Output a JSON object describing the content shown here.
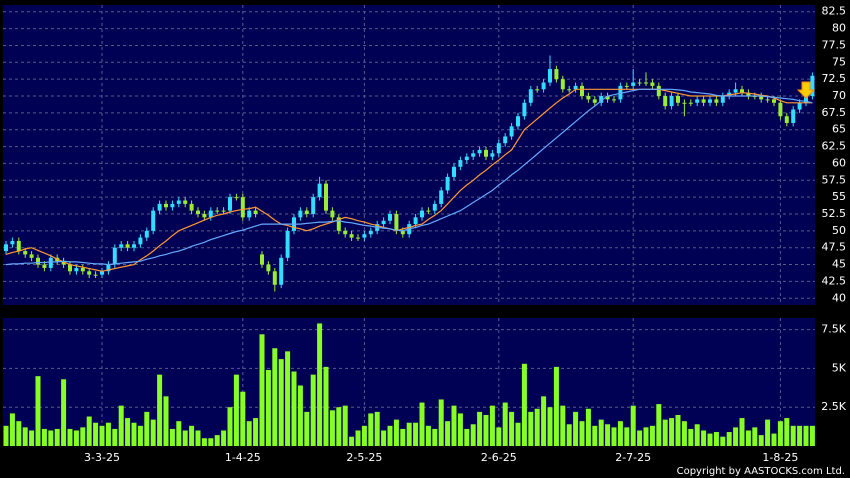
{
  "chart_data": {
    "type": "candlestick",
    "categories": [
      null,
      null,
      null,
      null,
      null,
      null,
      null,
      null,
      null,
      null,
      null,
      null,
      null,
      null,
      null,
      "3-3-25",
      null,
      null,
      null,
      null,
      null,
      null,
      null,
      null,
      null,
      null,
      null,
      null,
      null,
      null,
      null,
      null,
      null,
      null,
      null,
      null,
      null,
      "1-4-25",
      null,
      null,
      null,
      null,
      null,
      null,
      null,
      null,
      null,
      null,
      null,
      null,
      null,
      null,
      null,
      null,
      null,
      null,
      "2-5-25",
      null,
      null,
      null,
      null,
      null,
      null,
      null,
      null,
      null,
      null,
      null,
      null,
      null,
      null,
      null,
      null,
      null,
      null,
      null,
      null,
      "2-6-25",
      null,
      null,
      null,
      null,
      null,
      null,
      null,
      null,
      null,
      null,
      null,
      null,
      null,
      null,
      null,
      null,
      null,
      null,
      null,
      null,
      "2-7-25",
      null,
      null,
      null,
      null,
      null,
      null,
      null,
      null,
      null,
      null,
      null,
      null,
      null,
      null,
      null,
      null,
      null,
      null,
      null,
      null,
      null,
      null,
      "1-8-25",
      null,
      null,
      null,
      null,
      null
    ],
    "open": [
      47,
      48,
      48.5,
      47,
      46.5,
      46,
      45,
      44.5,
      46,
      45.5,
      45,
      44,
      44.5,
      44,
      43.5,
      43.5,
      44,
      45,
      47.5,
      48,
      47.5,
      48,
      49,
      50,
      53,
      54,
      53.5,
      54,
      54.5,
      54,
      53,
      52.5,
      52,
      53,
      53,
      53,
      55,
      55,
      52,
      53,
      46.5,
      45,
      44,
      42,
      46,
      50,
      52,
      53,
      52.5,
      55,
      57,
      53,
      52,
      50,
      49.5,
      49,
      49,
      49.5,
      50,
      51,
      51.5,
      52.5,
      50,
      49.5,
      51,
      52,
      53,
      53,
      54,
      56,
      58,
      59.5,
      60.5,
      61,
      61.5,
      62,
      61,
      61.5,
      63,
      64,
      65.5,
      67,
      69,
      71,
      71,
      72,
      74,
      72.5,
      71,
      71,
      71.5,
      70,
      69.5,
      69,
      70,
      69.5,
      69.5,
      71.5,
      71.5,
      72,
      72,
      72,
      71.5,
      70,
      68.5,
      70,
      69,
      69,
      69,
      69.5,
      69,
      69.5,
      69,
      70,
      70.5,
      71,
      70.5,
      70,
      70,
      69.5,
      69.5,
      69,
      67,
      66,
      68,
      69,
      70
    ],
    "high": [
      48.5,
      49,
      49,
      47.5,
      47,
      46.5,
      45.5,
      46.5,
      46.5,
      46,
      45.5,
      45,
      45,
      44.5,
      44,
      44.5,
      45.5,
      48,
      48.5,
      48.5,
      48.5,
      49.5,
      50.5,
      53.5,
      54.5,
      54.5,
      54.5,
      55,
      55,
      54.5,
      53.5,
      53,
      53.5,
      53.5,
      53.5,
      55.5,
      55.5,
      55.5,
      53.5,
      53.5,
      47,
      45.5,
      44.5,
      46.5,
      50.5,
      52.5,
      53.5,
      53.5,
      55.5,
      58,
      57.5,
      53.5,
      52.5,
      50.5,
      50,
      49.5,
      50,
      50.5,
      51.5,
      52,
      53,
      53,
      50.5,
      51.5,
      52.5,
      53.5,
      53.5,
      54.5,
      56.5,
      58.5,
      60,
      61,
      61.5,
      62,
      62.5,
      62.5,
      62,
      63.5,
      64.5,
      66,
      67.5,
      69.5,
      71.5,
      71.5,
      72.5,
      76,
      74.5,
      73,
      71.5,
      72,
      72,
      70.5,
      70,
      70.5,
      70.5,
      70,
      72,
      72,
      74,
      72.5,
      73.5,
      72.5,
      72,
      70.5,
      70.5,
      70.5,
      69.5,
      69.5,
      70,
      70,
      70,
      70,
      70.5,
      71,
      72,
      71.5,
      71,
      70.5,
      70.5,
      70,
      70,
      69.5,
      67.5,
      68.5,
      69.5,
      70.5,
      73.5
    ],
    "low": [
      46.5,
      47.5,
      46.5,
      46,
      45.5,
      44.5,
      44,
      44,
      45,
      44.5,
      43.5,
      43.5,
      43.5,
      43,
      43,
      43,
      43.5,
      44.5,
      47,
      47,
      47,
      47.5,
      48.5,
      49.5,
      52.5,
      53,
      53,
      53.5,
      53.5,
      52.5,
      52,
      51.5,
      51.5,
      52.5,
      52.5,
      52.5,
      54.5,
      51.5,
      51.5,
      52,
      44.5,
      43.5,
      41,
      41.5,
      45.5,
      49.5,
      51.5,
      52,
      52,
      54.5,
      52.5,
      51.5,
      49.5,
      49,
      48.5,
      48.5,
      48.5,
      49,
      49.5,
      50.5,
      51,
      49.5,
      49,
      49,
      50.5,
      51.5,
      52.5,
      52.5,
      53.5,
      55.5,
      57.5,
      59,
      60,
      60.5,
      61,
      60.5,
      60.5,
      61,
      62.5,
      63.5,
      65,
      66.5,
      68.5,
      70.5,
      70.5,
      71.5,
      72,
      70.5,
      70.5,
      70.5,
      69.5,
      69,
      68.5,
      68.5,
      69,
      69,
      69,
      71,
      71,
      71.5,
      71.5,
      71,
      69.5,
      68,
      68,
      68.5,
      67,
      68.5,
      68.5,
      68.5,
      68.5,
      68.5,
      68.5,
      69.5,
      70,
      70,
      69.5,
      69.5,
      69,
      69,
      68.5,
      66.5,
      65.5,
      65.5,
      67.5,
      68.5,
      69.5
    ],
    "close": [
      48,
      48.5,
      47,
      46.5,
      46,
      45,
      44.5,
      46,
      45.5,
      45,
      44,
      44.5,
      44,
      43.5,
      43.5,
      44,
      45,
      47.5,
      48,
      47.5,
      48,
      49,
      50,
      53,
      54,
      53.5,
      54,
      54.5,
      54,
      53,
      52.5,
      52,
      53,
      53,
      53,
      55,
      55,
      52,
      53,
      52.5,
      45,
      44,
      42,
      46,
      50,
      52,
      53,
      52.5,
      55,
      57,
      53,
      52,
      50,
      49.5,
      49,
      49,
      49.5,
      50,
      51,
      51.5,
      52.5,
      50,
      49.5,
      51,
      52,
      53,
      53,
      54,
      56,
      58,
      59.5,
      60.5,
      61,
      61.5,
      62,
      61,
      61.5,
      63,
      64,
      65.5,
      67,
      69,
      71,
      71,
      72,
      74,
      72.5,
      71,
      71,
      71.5,
      70,
      69.5,
      69,
      70,
      69.5,
      69.5,
      71.5,
      71.5,
      72,
      72,
      72,
      71.5,
      70,
      68.5,
      70,
      69,
      69,
      69,
      69.5,
      69,
      69.5,
      69,
      70,
      70.5,
      71,
      70.5,
      70,
      70,
      69.5,
      69.5,
      69,
      67,
      66,
      68,
      69,
      70,
      73
    ],
    "up_color": "#33ddff",
    "down_color": "#99ee33",
    "lines": [
      {
        "color": "#ff9933",
        "values": [
          46.5,
          46.8,
          47,
          47.3,
          47.5,
          47.1,
          46.7,
          46.3,
          45.8,
          45.4,
          45,
          44.8,
          44.6,
          44.4,
          44.2,
          44,
          44.2,
          44.4,
          44.6,
          44.8,
          45,
          45.7,
          46.3,
          47,
          47.8,
          48.5,
          49.3,
          50,
          50.4,
          50.8,
          51.2,
          51.6,
          52,
          52.3,
          52.5,
          52.8,
          53,
          53.2,
          53.3,
          53.5,
          52.9,
          52.3,
          51.6,
          51,
          50.8,
          50.5,
          50.3,
          50,
          50.3,
          50.7,
          51,
          51.3,
          51.7,
          52,
          51.8,
          51.5,
          51.3,
          51,
          50.8,
          50.5,
          50.3,
          50,
          50.3,
          50.5,
          50.8,
          51,
          51.7,
          52.3,
          53,
          54,
          55,
          56,
          56.8,
          57.5,
          58.3,
          59,
          59.8,
          60.5,
          61.3,
          62,
          63.5,
          65,
          65.8,
          66.6,
          67.4,
          68.2,
          69,
          69.7,
          70.3,
          71,
          71,
          71,
          71,
          71,
          71,
          71,
          71,
          71,
          71,
          71,
          71,
          71,
          71,
          70.8,
          70.6,
          70.4,
          70.2,
          70,
          70,
          70,
          70,
          70,
          70,
          70.2,
          70.3,
          70.5,
          70.4,
          70.3,
          70.1,
          70,
          69.7,
          69.3,
          69,
          69,
          69,
          69,
          69
        ]
      },
      {
        "color": "#66aaff",
        "values": [
          45,
          45.1,
          45.1,
          45.2,
          45.2,
          45.3,
          45.3,
          45.4,
          45.4,
          45.5,
          45.4,
          45.4,
          45.3,
          45.2,
          45.1,
          45.1,
          45,
          45.1,
          45.2,
          45.3,
          45.4,
          45.5,
          45.8,
          46,
          46.3,
          46.5,
          46.8,
          47,
          47.3,
          47.7,
          48,
          48.3,
          48.7,
          49,
          49.3,
          49.6,
          49.9,
          50.1,
          50.4,
          50.7,
          51,
          51,
          51,
          51,
          51,
          51,
          51,
          51.1,
          51.2,
          51.3,
          51.3,
          51.4,
          51.5,
          51.3,
          51.2,
          51,
          50.8,
          50.7,
          50.5,
          50.4,
          50.3,
          50.1,
          50,
          50.3,
          50.5,
          50.8,
          51,
          51.4,
          51.8,
          52.2,
          52.6,
          53,
          53.6,
          54.2,
          54.8,
          55.4,
          56,
          56.8,
          57.5,
          58.3,
          59,
          59.8,
          60.6,
          61.4,
          62.2,
          63,
          63.8,
          64.6,
          65.4,
          66.2,
          67,
          67.8,
          68.5,
          69.3,
          70,
          70.2,
          70.4,
          70.6,
          70.8,
          71,
          71,
          71,
          71,
          71,
          71,
          70.9,
          70.8,
          70.6,
          70.5,
          70.4,
          70.3,
          70.1,
          70,
          70,
          70,
          70,
          70,
          70,
          70,
          69.9,
          69.8,
          69.7,
          69.6,
          69.5,
          69.3,
          69.2,
          69
        ]
      }
    ],
    "ylim": [
      39,
      83.5
    ],
    "yticks": [
      40,
      42.5,
      45,
      47.5,
      50,
      52.5,
      55,
      57.5,
      60,
      62.5,
      65,
      67.5,
      70,
      72.5,
      75,
      77.5,
      80,
      82.5
    ],
    "grid": true,
    "volume": {
      "color": "#88ff22",
      "values": [
        1300,
        2100,
        1600,
        1200,
        1000,
        4500,
        1100,
        1000,
        1100,
        4300,
        1100,
        1000,
        1200,
        1900,
        1500,
        1300,
        1500,
        1100,
        2600,
        1800,
        1500,
        1300,
        2200,
        1700,
        4600,
        3200,
        1100,
        1600,
        1000,
        1300,
        1000,
        500,
        500,
        700,
        1000,
        2500,
        4600,
        3500,
        1600,
        1800,
        7200,
        4900,
        6300,
        5600,
        6100,
        4800,
        3900,
        2200,
        4600,
        7900,
        5100,
        2300,
        2500,
        2600,
        600,
        1000,
        1300,
        2100,
        2200,
        1000,
        1300,
        1700,
        1100,
        1500,
        1500,
        2800,
        1300,
        1100,
        3000,
        1600,
        2600,
        2100,
        1100,
        1400,
        2200,
        2000,
        2600,
        1200,
        2800,
        2200,
        1500,
        5300,
        2200,
        2400,
        3200,
        2500,
        5100,
        2600,
        1400,
        2200,
        1600,
        2400,
        1300,
        1700,
        1400,
        1200,
        1600,
        1200,
        2600,
        1000,
        1200,
        1300,
        2700,
        1700,
        1800,
        2000,
        1600,
        1100,
        1400,
        1000,
        800,
        900,
        600,
        900,
        1200,
        1800,
        1000,
        1200,
        700,
        1700,
        800,
        1600,
        1800,
        1300,
        1300,
        1300,
        1300
      ],
      "ylim": [
        0,
        8250
      ],
      "yticks": [
        {
          "value": 2500,
          "label": "2.5K"
        },
        {
          "value": 5000,
          "label": "5K"
        },
        {
          "value": 7500,
          "label": "7.5K"
        }
      ]
    },
    "copyright": "Copyright by AASTOCKS.com Ltd."
  }
}
